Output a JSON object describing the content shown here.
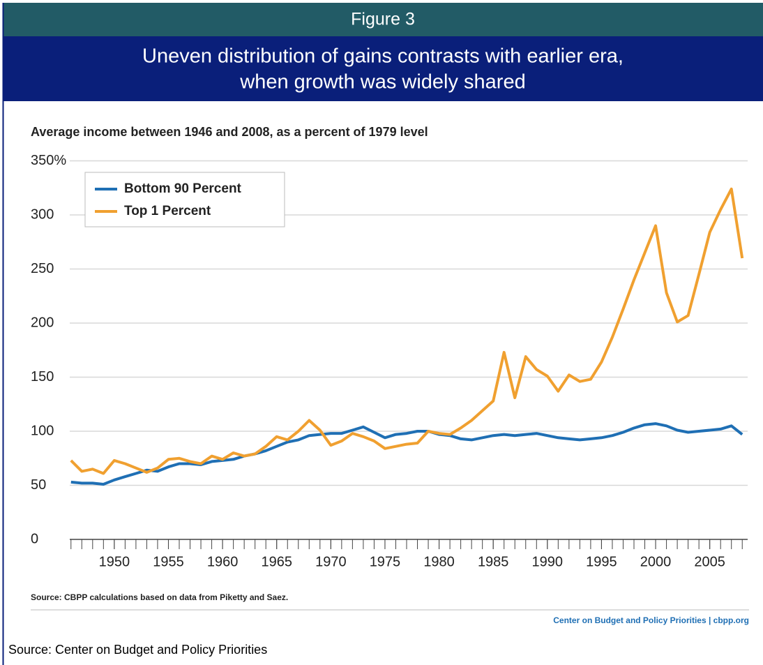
{
  "chart_data": {
    "type": "line",
    "figure_label": "Figure 3",
    "title": [
      "Uneven distribution of gains contrasts with earlier era,",
      "when growth was widely shared"
    ],
    "subtitle": "Average income between 1946 and 2008, as a percent of 1979 level",
    "note": "Source: CBPP calculations based on data from Piketty and Saez.",
    "credit": "Center on Budget and Policy Priorities | cbpp.org",
    "footer": "Source: Center on Budget and Policy Priorities",
    "x": [
      1946,
      1947,
      1948,
      1949,
      1950,
      1951,
      1952,
      1953,
      1954,
      1955,
      1956,
      1957,
      1958,
      1959,
      1960,
      1961,
      1962,
      1963,
      1964,
      1965,
      1966,
      1967,
      1968,
      1969,
      1970,
      1971,
      1972,
      1973,
      1974,
      1975,
      1976,
      1977,
      1978,
      1979,
      1980,
      1981,
      1982,
      1983,
      1984,
      1985,
      1986,
      1987,
      1988,
      1989,
      1990,
      1991,
      1992,
      1993,
      1994,
      1995,
      1996,
      1997,
      1998,
      1999,
      2000,
      2001,
      2002,
      2003,
      2004,
      2005,
      2006,
      2007,
      2008
    ],
    "series": [
      {
        "name": "Bottom 90 Percent",
        "color": "#1f6fb4",
        "values": [
          53,
          52,
          52,
          51,
          55,
          58,
          61,
          64,
          63,
          67,
          70,
          70,
          69,
          72,
          73,
          74,
          77,
          79,
          82,
          86,
          90,
          92,
          96,
          97,
          98,
          98,
          101,
          104,
          99,
          94,
          97,
          98,
          100,
          100,
          97,
          96,
          93,
          92,
          94,
          96,
          97,
          96,
          97,
          98,
          96,
          94,
          93,
          92,
          93,
          94,
          96,
          99,
          103,
          106,
          107,
          105,
          101,
          99,
          100,
          101,
          102,
          105,
          97
        ]
      },
      {
        "name": "Top 1 Percent",
        "color": "#f0a030",
        "values": [
          73,
          63,
          65,
          61,
          73,
          70,
          66,
          62,
          66,
          74,
          75,
          72,
          70,
          77,
          74,
          80,
          77,
          79,
          86,
          95,
          92,
          100,
          110,
          101,
          87,
          91,
          98,
          95,
          91,
          84,
          86,
          88,
          89,
          100,
          98,
          97,
          103,
          110,
          119,
          128,
          173,
          131,
          169,
          157,
          151,
          137,
          152,
          146,
          148,
          164,
          187,
          213,
          240,
          265,
          290,
          228,
          201,
          207,
          245,
          284,
          305,
          324,
          260
        ]
      }
    ],
    "xlim": [
      1945.5,
      2008.5
    ],
    "xticks": [
      1950,
      1955,
      1960,
      1965,
      1970,
      1975,
      1980,
      1985,
      1990,
      1995,
      2000,
      2005
    ],
    "ylim": [
      0,
      350
    ],
    "yticks": [
      0,
      50,
      100,
      150,
      200,
      250,
      300,
      {
        "value": 350,
        "label": "350%"
      }
    ],
    "grid": true,
    "legend": "top-left"
  }
}
